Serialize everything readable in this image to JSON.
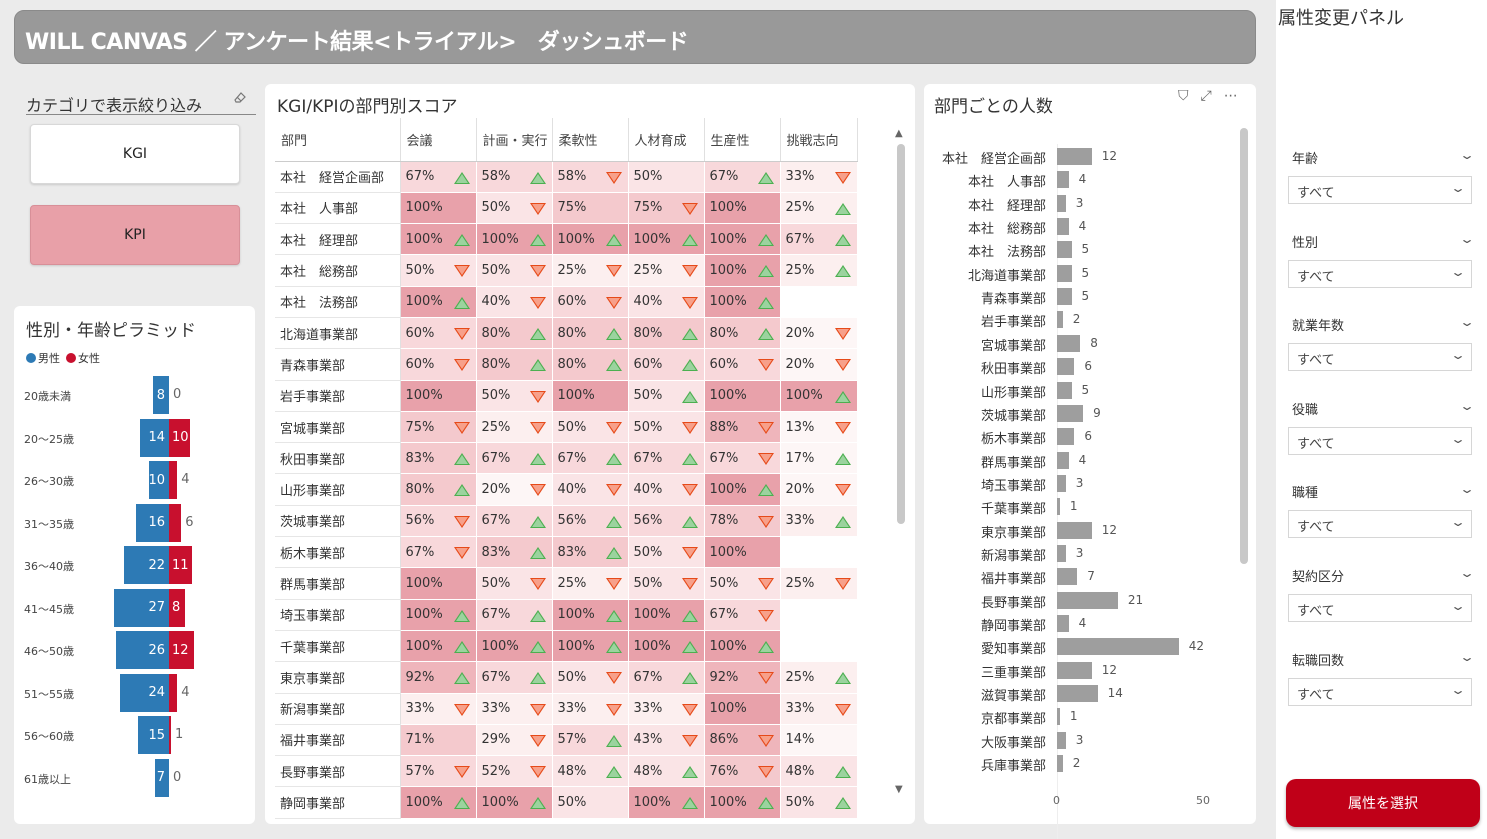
{
  "header": {
    "title": "WILL CANVAS ／ アンケート結果<トライアル>　ダッシュボード"
  },
  "category": {
    "title": "カテゴリで表示絞り込み",
    "buttons": [
      "KGI",
      "KPI"
    ],
    "selected": "KPI"
  },
  "pyramid": {
    "title": "性別・年齢ピラミッド",
    "legend": {
      "male": "男性",
      "female": "女性"
    },
    "colors": {
      "male": "#2d7ab5",
      "female": "#c8102e"
    },
    "rows": [
      {
        "age": "20歳未満",
        "male": 8,
        "female": 0
      },
      {
        "age": "20〜25歳",
        "male": 14,
        "female": 10
      },
      {
        "age": "26〜30歳",
        "male": 10,
        "female": 4
      },
      {
        "age": "31〜35歳",
        "male": 16,
        "female": 6
      },
      {
        "age": "36〜40歳",
        "male": 22,
        "female": 11
      },
      {
        "age": "41〜45歳",
        "male": 27,
        "female": 8
      },
      {
        "age": "46〜50歳",
        "male": 26,
        "female": 12
      },
      {
        "age": "51〜55歳",
        "male": 24,
        "female": 4
      },
      {
        "age": "56〜60歳",
        "male": 15,
        "female": 1
      },
      {
        "age": "61歳以上",
        "male": 7,
        "female": 0
      }
    ]
  },
  "kpi_table": {
    "title": "KGI/KPIの部門別スコア",
    "columns": [
      "部門",
      "会議",
      "計画・実行",
      "柔軟性",
      "人材育成",
      "生産性",
      "挑戦志向"
    ],
    "rows": [
      {
        "dept": "本社　経営企画部",
        "cells": [
          [
            "67%",
            "up"
          ],
          [
            "58%",
            "up"
          ],
          [
            "58%",
            "down"
          ],
          [
            "50%",
            ""
          ],
          [
            "67%",
            "up"
          ],
          [
            "33%",
            "down"
          ]
        ]
      },
      {
        "dept": "本社　人事部",
        "cells": [
          [
            "100%",
            ""
          ],
          [
            "50%",
            "down"
          ],
          [
            "75%",
            ""
          ],
          [
            "75%",
            "down"
          ],
          [
            "100%",
            ""
          ],
          [
            "25%",
            "up"
          ]
        ]
      },
      {
        "dept": "本社　経理部",
        "cells": [
          [
            "100%",
            "up"
          ],
          [
            "100%",
            "up"
          ],
          [
            "100%",
            "up"
          ],
          [
            "100%",
            "up"
          ],
          [
            "100%",
            "up"
          ],
          [
            "67%",
            "up"
          ]
        ]
      },
      {
        "dept": "本社　総務部",
        "cells": [
          [
            "50%",
            "down"
          ],
          [
            "50%",
            "down"
          ],
          [
            "25%",
            "down"
          ],
          [
            "25%",
            "down"
          ],
          [
            "100%",
            "up"
          ],
          [
            "25%",
            "up"
          ]
        ]
      },
      {
        "dept": "本社　法務部",
        "cells": [
          [
            "100%",
            "up"
          ],
          [
            "40%",
            "down"
          ],
          [
            "60%",
            "down"
          ],
          [
            "40%",
            "down"
          ],
          [
            "100%",
            "up"
          ],
          [
            "",
            ""
          ]
        ]
      },
      {
        "dept": "北海道事業部",
        "cells": [
          [
            "60%",
            "down"
          ],
          [
            "80%",
            "up"
          ],
          [
            "80%",
            "up"
          ],
          [
            "80%",
            "up"
          ],
          [
            "80%",
            "up"
          ],
          [
            "20%",
            "down"
          ]
        ]
      },
      {
        "dept": "青森事業部",
        "cells": [
          [
            "60%",
            "down"
          ],
          [
            "80%",
            "up"
          ],
          [
            "80%",
            "up"
          ],
          [
            "60%",
            "up"
          ],
          [
            "60%",
            "down"
          ],
          [
            "20%",
            "down"
          ]
        ]
      },
      {
        "dept": "岩手事業部",
        "cells": [
          [
            "100%",
            ""
          ],
          [
            "50%",
            "down"
          ],
          [
            "100%",
            ""
          ],
          [
            "50%",
            "up"
          ],
          [
            "100%",
            ""
          ],
          [
            "100%",
            "up"
          ]
        ]
      },
      {
        "dept": "宮城事業部",
        "cells": [
          [
            "75%",
            "down"
          ],
          [
            "25%",
            "down"
          ],
          [
            "50%",
            "down"
          ],
          [
            "50%",
            "down"
          ],
          [
            "88%",
            "down"
          ],
          [
            "13%",
            "down"
          ]
        ]
      },
      {
        "dept": "秋田事業部",
        "cells": [
          [
            "83%",
            "up"
          ],
          [
            "67%",
            "up"
          ],
          [
            "67%",
            "up"
          ],
          [
            "67%",
            "up"
          ],
          [
            "67%",
            "down"
          ],
          [
            "17%",
            "up"
          ]
        ]
      },
      {
        "dept": "山形事業部",
        "cells": [
          [
            "80%",
            "up"
          ],
          [
            "20%",
            "down"
          ],
          [
            "40%",
            "down"
          ],
          [
            "40%",
            "down"
          ],
          [
            "100%",
            "up"
          ],
          [
            "20%",
            "down"
          ]
        ]
      },
      {
        "dept": "茨城事業部",
        "cells": [
          [
            "56%",
            "down"
          ],
          [
            "67%",
            "up"
          ],
          [
            "56%",
            "up"
          ],
          [
            "56%",
            "up"
          ],
          [
            "78%",
            "down"
          ],
          [
            "33%",
            "up"
          ]
        ]
      },
      {
        "dept": "栃木事業部",
        "cells": [
          [
            "67%",
            "down"
          ],
          [
            "83%",
            "up"
          ],
          [
            "83%",
            "up"
          ],
          [
            "50%",
            "down"
          ],
          [
            "100%",
            ""
          ],
          [
            "",
            ""
          ]
        ]
      },
      {
        "dept": "群馬事業部",
        "cells": [
          [
            "100%",
            ""
          ],
          [
            "50%",
            "down"
          ],
          [
            "25%",
            "down"
          ],
          [
            "50%",
            "down"
          ],
          [
            "50%",
            "down"
          ],
          [
            "25%",
            "down"
          ]
        ]
      },
      {
        "dept": "埼玉事業部",
        "cells": [
          [
            "100%",
            "up"
          ],
          [
            "67%",
            "up"
          ],
          [
            "100%",
            "up"
          ],
          [
            "100%",
            "up"
          ],
          [
            "67%",
            "down"
          ],
          [
            "",
            ""
          ]
        ]
      },
      {
        "dept": "千葉事業部",
        "cells": [
          [
            "100%",
            "up"
          ],
          [
            "100%",
            "up"
          ],
          [
            "100%",
            "up"
          ],
          [
            "100%",
            "up"
          ],
          [
            "100%",
            "up"
          ],
          [
            "",
            ""
          ]
        ]
      },
      {
        "dept": "東京事業部",
        "cells": [
          [
            "92%",
            "up"
          ],
          [
            "67%",
            "up"
          ],
          [
            "50%",
            "down"
          ],
          [
            "67%",
            "up"
          ],
          [
            "92%",
            "down"
          ],
          [
            "25%",
            "up"
          ]
        ]
      },
      {
        "dept": "新潟事業部",
        "cells": [
          [
            "33%",
            "down"
          ],
          [
            "33%",
            "down"
          ],
          [
            "33%",
            "down"
          ],
          [
            "33%",
            "down"
          ],
          [
            "100%",
            ""
          ],
          [
            "33%",
            "down"
          ]
        ]
      },
      {
        "dept": "福井事業部",
        "cells": [
          [
            "71%",
            ""
          ],
          [
            "29%",
            "down"
          ],
          [
            "57%",
            "up"
          ],
          [
            "43%",
            "down"
          ],
          [
            "86%",
            "down"
          ],
          [
            "14%",
            ""
          ]
        ]
      },
      {
        "dept": "長野事業部",
        "cells": [
          [
            "57%",
            "down"
          ],
          [
            "52%",
            "down"
          ],
          [
            "48%",
            "up"
          ],
          [
            "48%",
            "up"
          ],
          [
            "76%",
            "down"
          ],
          [
            "48%",
            "up"
          ]
        ]
      },
      {
        "dept": "静岡事業部",
        "cells": [
          [
            "100%",
            "up"
          ],
          [
            "100%",
            "up"
          ],
          [
            "50%",
            ""
          ],
          [
            "100%",
            "up"
          ],
          [
            "100%",
            "up"
          ],
          [
            "50%",
            "up"
          ]
        ]
      }
    ]
  },
  "dept_count": {
    "title": "部門ごとの人数",
    "axis_ticks": [
      "0",
      "50"
    ],
    "x_max": 50,
    "rows": [
      {
        "label": "本社　経営企画部",
        "value": 12
      },
      {
        "label": "本社　人事部",
        "value": 4
      },
      {
        "label": "本社　経理部",
        "value": 3
      },
      {
        "label": "本社　総務部",
        "value": 4
      },
      {
        "label": "本社　法務部",
        "value": 5
      },
      {
        "label": "北海道事業部",
        "value": 5
      },
      {
        "label": "青森事業部",
        "value": 5
      },
      {
        "label": "岩手事業部",
        "value": 2
      },
      {
        "label": "宮城事業部",
        "value": 8
      },
      {
        "label": "秋田事業部",
        "value": 6
      },
      {
        "label": "山形事業部",
        "value": 5
      },
      {
        "label": "茨城事業部",
        "value": 9
      },
      {
        "label": "栃木事業部",
        "value": 6
      },
      {
        "label": "群馬事業部",
        "value": 4
      },
      {
        "label": "埼玉事業部",
        "value": 3
      },
      {
        "label": "千葉事業部",
        "value": 1
      },
      {
        "label": "東京事業部",
        "value": 12
      },
      {
        "label": "新潟事業部",
        "value": 3
      },
      {
        "label": "福井事業部",
        "value": 7
      },
      {
        "label": "長野事業部",
        "value": 21
      },
      {
        "label": "静岡事業部",
        "value": 4
      },
      {
        "label": "愛知事業部",
        "value": 42
      },
      {
        "label": "三重事業部",
        "value": 12
      },
      {
        "label": "滋賀事業部",
        "value": 14
      },
      {
        "label": "京都事業部",
        "value": 1
      },
      {
        "label": "大阪事業部",
        "value": 3
      },
      {
        "label": "兵庫事業部",
        "value": 2
      }
    ]
  },
  "attr_panel": {
    "title": "属性変更パネル",
    "slicers": [
      {
        "label": "年齢",
        "value": "すべて"
      },
      {
        "label": "性別",
        "value": "すべて"
      },
      {
        "label": "就業年数",
        "value": "すべて"
      },
      {
        "label": "役職",
        "value": "すべて"
      },
      {
        "label": "職種",
        "value": "すべて"
      },
      {
        "label": "契約区分",
        "value": "すべて"
      },
      {
        "label": "転職回数",
        "value": "すべて"
      }
    ],
    "apply_label": "属性を選択"
  }
}
